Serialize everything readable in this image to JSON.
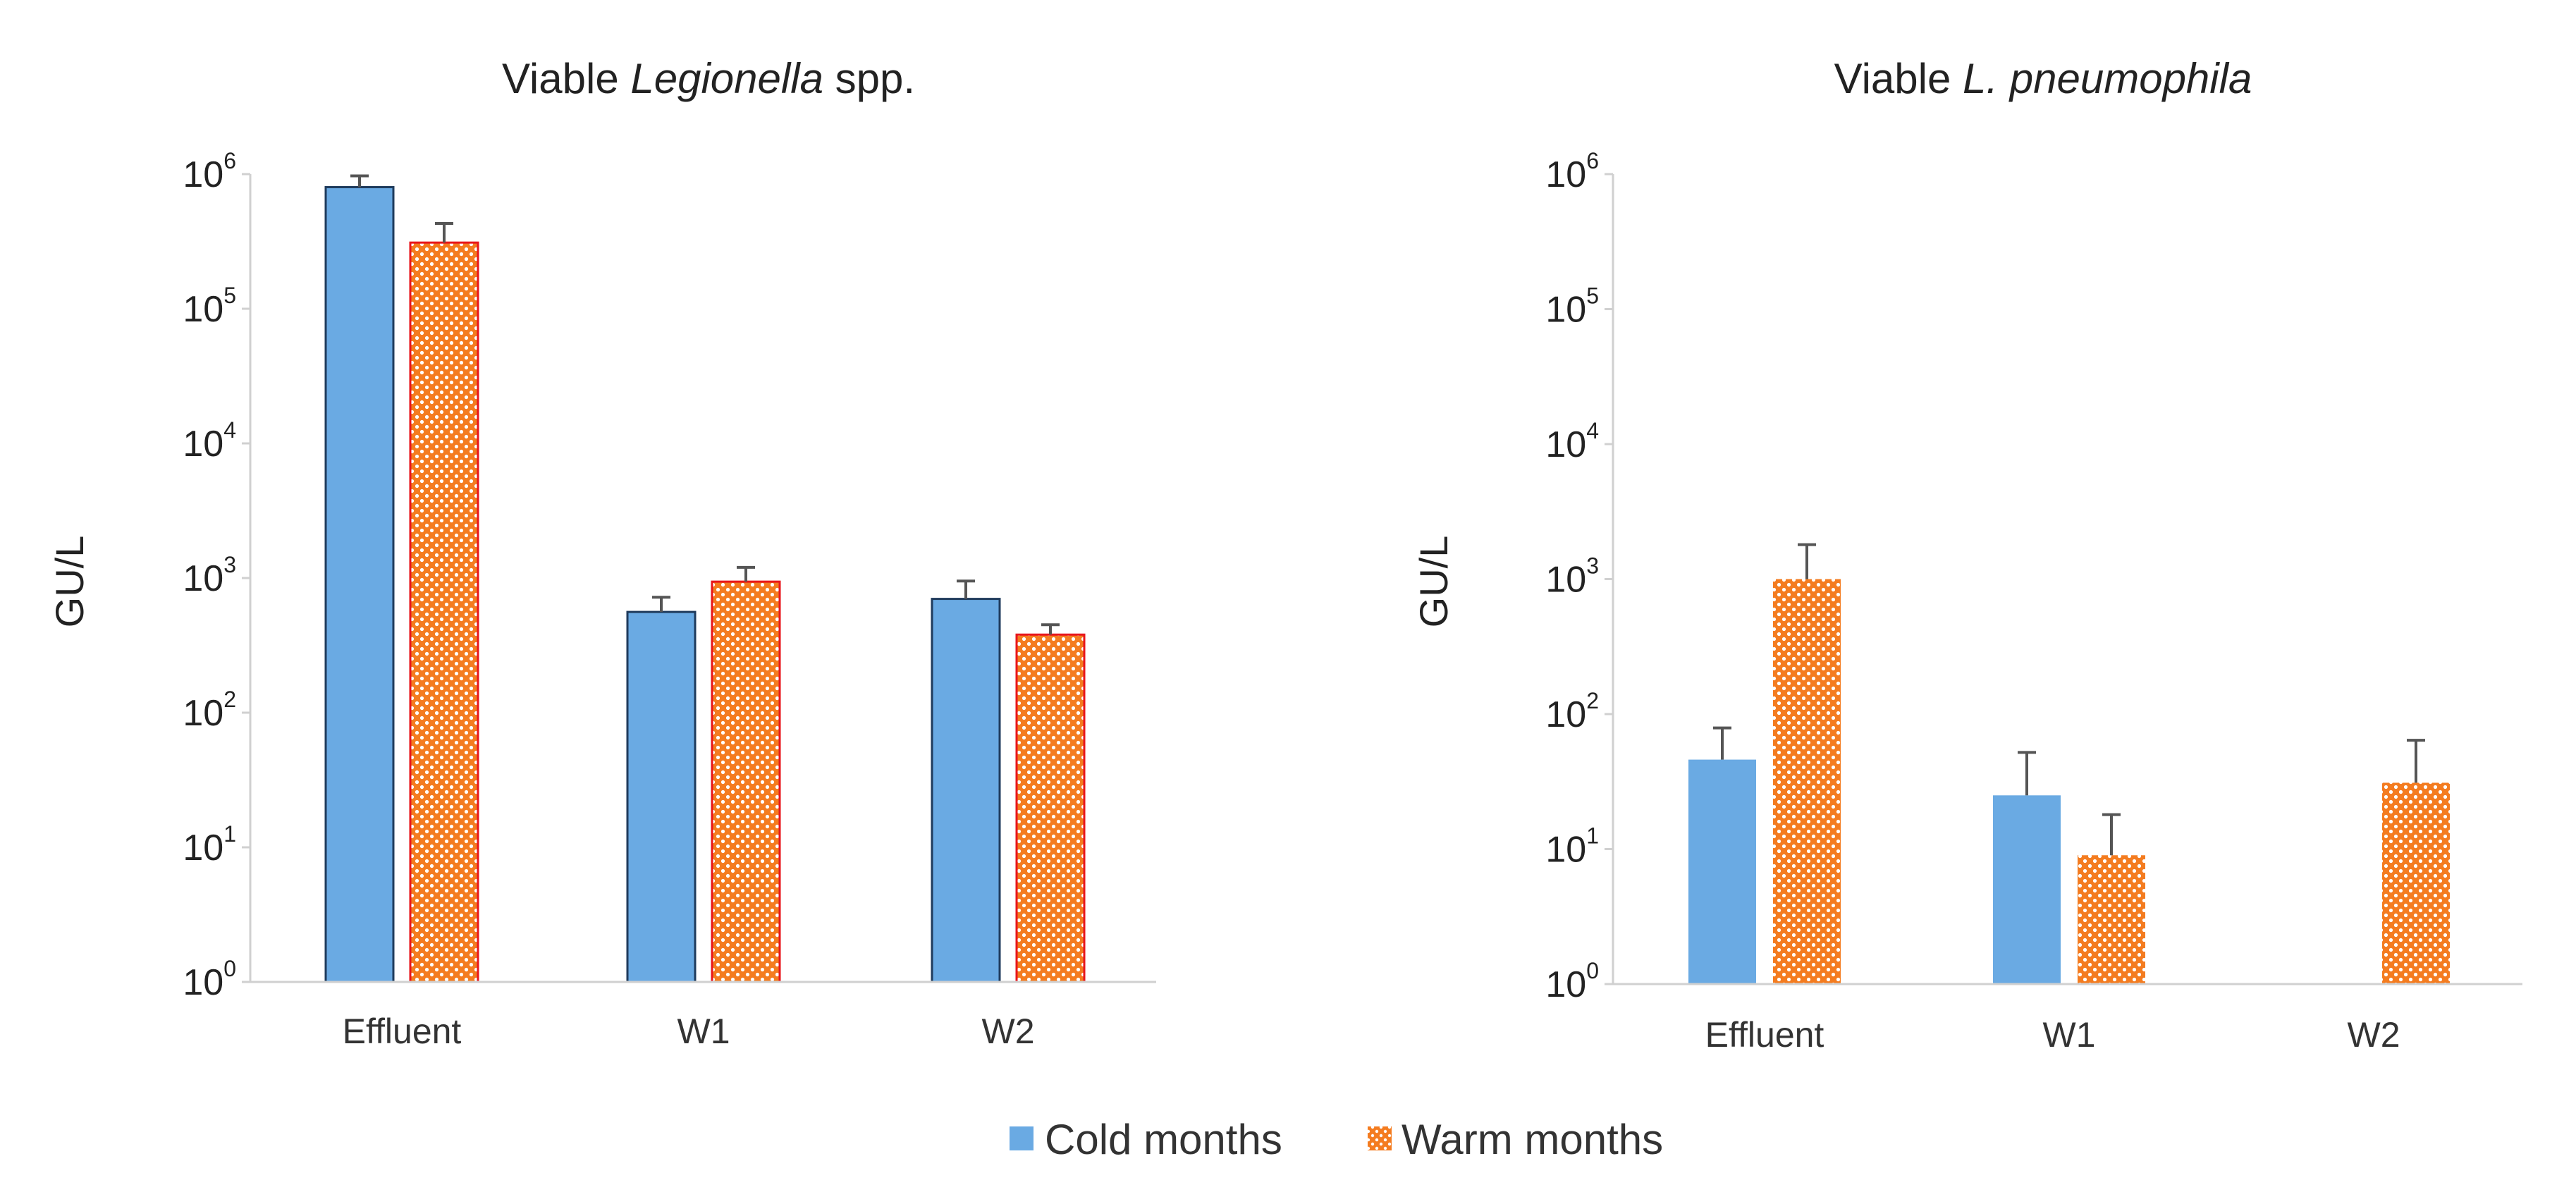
{
  "chart_data": [
    {
      "type": "bar",
      "title": {
        "prefix": "Viable ",
        "italic": "Legionella",
        "suffix": " spp."
      },
      "ylabel": "GU/L",
      "yscale": "log",
      "ylim": [
        1,
        1000000
      ],
      "ytick_base": "10",
      "ytick_exponents": [
        "0",
        "1",
        "2",
        "3",
        "4",
        "5",
        "6"
      ],
      "categories": [
        "Effluent",
        "W1",
        "W2"
      ],
      "series": [
        {
          "name": "Cold months",
          "values": [
            800000,
            560,
            700
          ],
          "errors": [
            170000,
            160,
            250
          ]
        },
        {
          "name": "Warm months",
          "values": [
            310000,
            940,
            380
          ],
          "errors": [
            120000,
            260,
            70
          ]
        }
      ]
    },
    {
      "type": "bar",
      "title": {
        "prefix": "Viable ",
        "italic": "L. pneumophila",
        "suffix": ""
      },
      "ylabel": "GU/L",
      "yscale": "log",
      "ylim": [
        1,
        1000000
      ],
      "ytick_base": "10",
      "ytick_exponents": [
        "0",
        "1",
        "2",
        "3",
        "4",
        "5",
        "6"
      ],
      "categories": [
        "Effluent",
        "W1",
        "W2"
      ],
      "series": [
        {
          "name": "Cold months",
          "values": [
            46,
            25,
            null
          ],
          "errors": [
            33,
            27,
            null
          ]
        },
        {
          "name": "Warm months",
          "values": [
            1000,
            9,
            31
          ],
          "errors": [
            800,
            9,
            33
          ]
        }
      ]
    }
  ],
  "legend": {
    "position": "bottom-center",
    "items": [
      {
        "name": "Cold months",
        "style": "solid"
      },
      {
        "name": "Warm months",
        "style": "dotted"
      }
    ]
  },
  "colors": {
    "cold_fill": "#6aaae3",
    "cold_outline": "#1f3b5c",
    "warm_fill": "#f47c20",
    "warm_dots": "#ffffff",
    "warm_outline": "#e8161b",
    "error_bar": "#555555",
    "axis": "#d0d0d0"
  }
}
